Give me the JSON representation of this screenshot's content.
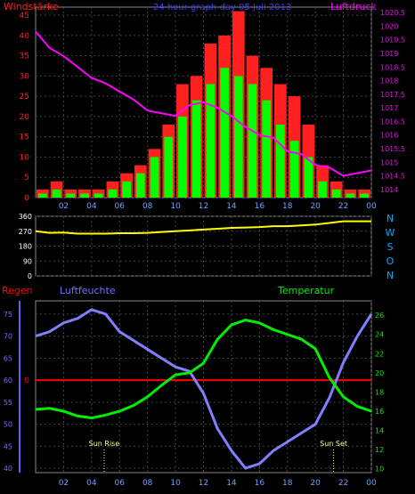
{
  "chart_data": [
    {
      "type": "bar",
      "title": "24 hour graph day  05 Juli 2013",
      "left_axis_label": "Windstärke",
      "right_axis_label": "Luftdruck",
      "x_tick_labels": [
        "02",
        "04",
        "06",
        "08",
        "10",
        "12",
        "14",
        "16",
        "18",
        "20",
        "22",
        "00"
      ],
      "y_left_ticks": [
        "0",
        "5",
        "10",
        "15",
        "20",
        "25",
        "30",
        "35",
        "40",
        "45"
      ],
      "y_left_range": [
        0,
        47
      ],
      "y_right_ticks": [
        "1014",
        "1014.5",
        "1015",
        "1015.5",
        "1016",
        "1016.5",
        "1017",
        "1017.5",
        "1018",
        "1018.5",
        "1019",
        "1019.5",
        "1020",
        "1020.5"
      ],
      "y_right_range": [
        1013.7,
        1020.7
      ],
      "gusts_color": "#ff2020",
      "wind_color": "#00ff00",
      "pressure_color": "#ff00ff",
      "hourly_gust_max": [
        2,
        4,
        2,
        2,
        2,
        4,
        6,
        8,
        12,
        18,
        28,
        30,
        38,
        40,
        46,
        35,
        32,
        28,
        25,
        18,
        8,
        4,
        2,
        2
      ],
      "hourly_wind_max": [
        1,
        2,
        1,
        1,
        1,
        2,
        4,
        6,
        10,
        15,
        20,
        24,
        28,
        32,
        30,
        28,
        24,
        18,
        14,
        10,
        4,
        2,
        1,
        1
      ],
      "pressure": {
        "x": [
          0,
          1,
          2,
          3,
          4,
          5,
          6,
          7,
          8,
          9,
          10,
          11,
          12,
          13,
          14,
          15,
          16,
          17,
          18,
          19,
          20,
          21,
          22,
          23,
          24
        ],
        "y": [
          1019.8,
          1019.2,
          1018.9,
          1018.5,
          1018.1,
          1017.9,
          1017.6,
          1017.3,
          1016.9,
          1016.8,
          1016.7,
          1017.1,
          1017.2,
          1017.0,
          1016.7,
          1016.3,
          1016.0,
          1015.9,
          1015.4,
          1015.3,
          1014.9,
          1014.8,
          1014.5,
          1014.6,
          1014.7
        ]
      }
    },
    {
      "type": "line",
      "x_tick_labels": [
        "02",
        "04",
        "06",
        "08",
        "10",
        "12",
        "14",
        "16",
        "18",
        "20",
        "22",
        "00"
      ],
      "y_left_ticks": [
        "0",
        "90",
        "180",
        "270",
        "360"
      ],
      "y_range": [
        0,
        360
      ],
      "right_labels": [
        "N",
        "W",
        "S",
        "O",
        "N"
      ],
      "line_color": "#ffff00",
      "direction": {
        "x": [
          0,
          1,
          2,
          3,
          4,
          5,
          6,
          7,
          8,
          9,
          10,
          11,
          12,
          13,
          14,
          15,
          16,
          17,
          18,
          19,
          20,
          21,
          22,
          23,
          24
        ],
        "y": [
          270,
          260,
          262,
          255,
          255,
          255,
          258,
          258,
          260,
          265,
          270,
          275,
          280,
          285,
          290,
          292,
          295,
          300,
          300,
          305,
          310,
          320,
          330,
          330,
          330
        ]
      }
    },
    {
      "type": "line",
      "label_rain": "Regen",
      "label_humidity": "Luftfeuchte",
      "label_temperature": "Temperatur",
      "x_tick_labels": [
        "02",
        "04",
        "06",
        "08",
        "10",
        "12",
        "14",
        "16",
        "18",
        "20",
        "22",
        "00"
      ],
      "y_left_ticks": [
        "40",
        "45",
        "50",
        "55",
        "60",
        "65",
        "70",
        "75"
      ],
      "y_left_range": [
        39,
        78
      ],
      "y_mid_label": "0",
      "y_right_ticks": [
        "10",
        "12",
        "14",
        "16",
        "18",
        "20",
        "22",
        "24",
        "26"
      ],
      "y_right_range": [
        9.6,
        27.5
      ],
      "sun_rise_label": "Sun Rise",
      "sun_set_label": "Sun Set",
      "sun_rise_hour": 4.9,
      "sun_set_hour": 21.3,
      "humidity_color": "#8080ff",
      "temperature_color": "#00ee00",
      "rain_color": "#ff0000",
      "rain_value": 0,
      "humidity": {
        "x": [
          0,
          1,
          2,
          3,
          4,
          5,
          6,
          7,
          8,
          9,
          10,
          11,
          12,
          13,
          14,
          15,
          16,
          17,
          18,
          19,
          20,
          21,
          22,
          23,
          24
        ],
        "y": [
          70,
          71,
          73,
          74,
          76,
          75,
          71,
          69,
          67,
          65,
          63,
          62,
          57,
          49,
          44,
          40,
          41,
          44,
          46,
          48,
          50,
          56,
          64,
          70,
          75
        ]
      },
      "temperature": {
        "x": [
          0,
          1,
          2,
          3,
          4,
          5,
          6,
          7,
          8,
          9,
          10,
          11,
          12,
          13,
          14,
          15,
          16,
          17,
          18,
          19,
          20,
          21,
          22,
          23,
          24
        ],
        "y": [
          16.2,
          16.3,
          16.0,
          15.5,
          15.3,
          15.6,
          16.0,
          16.6,
          17.5,
          18.7,
          19.8,
          20.0,
          21.0,
          23.5,
          25.0,
          25.5,
          25.2,
          24.5,
          24.0,
          23.5,
          22.5,
          19.5,
          17.5,
          16.5,
          16.0
        ]
      }
    }
  ]
}
